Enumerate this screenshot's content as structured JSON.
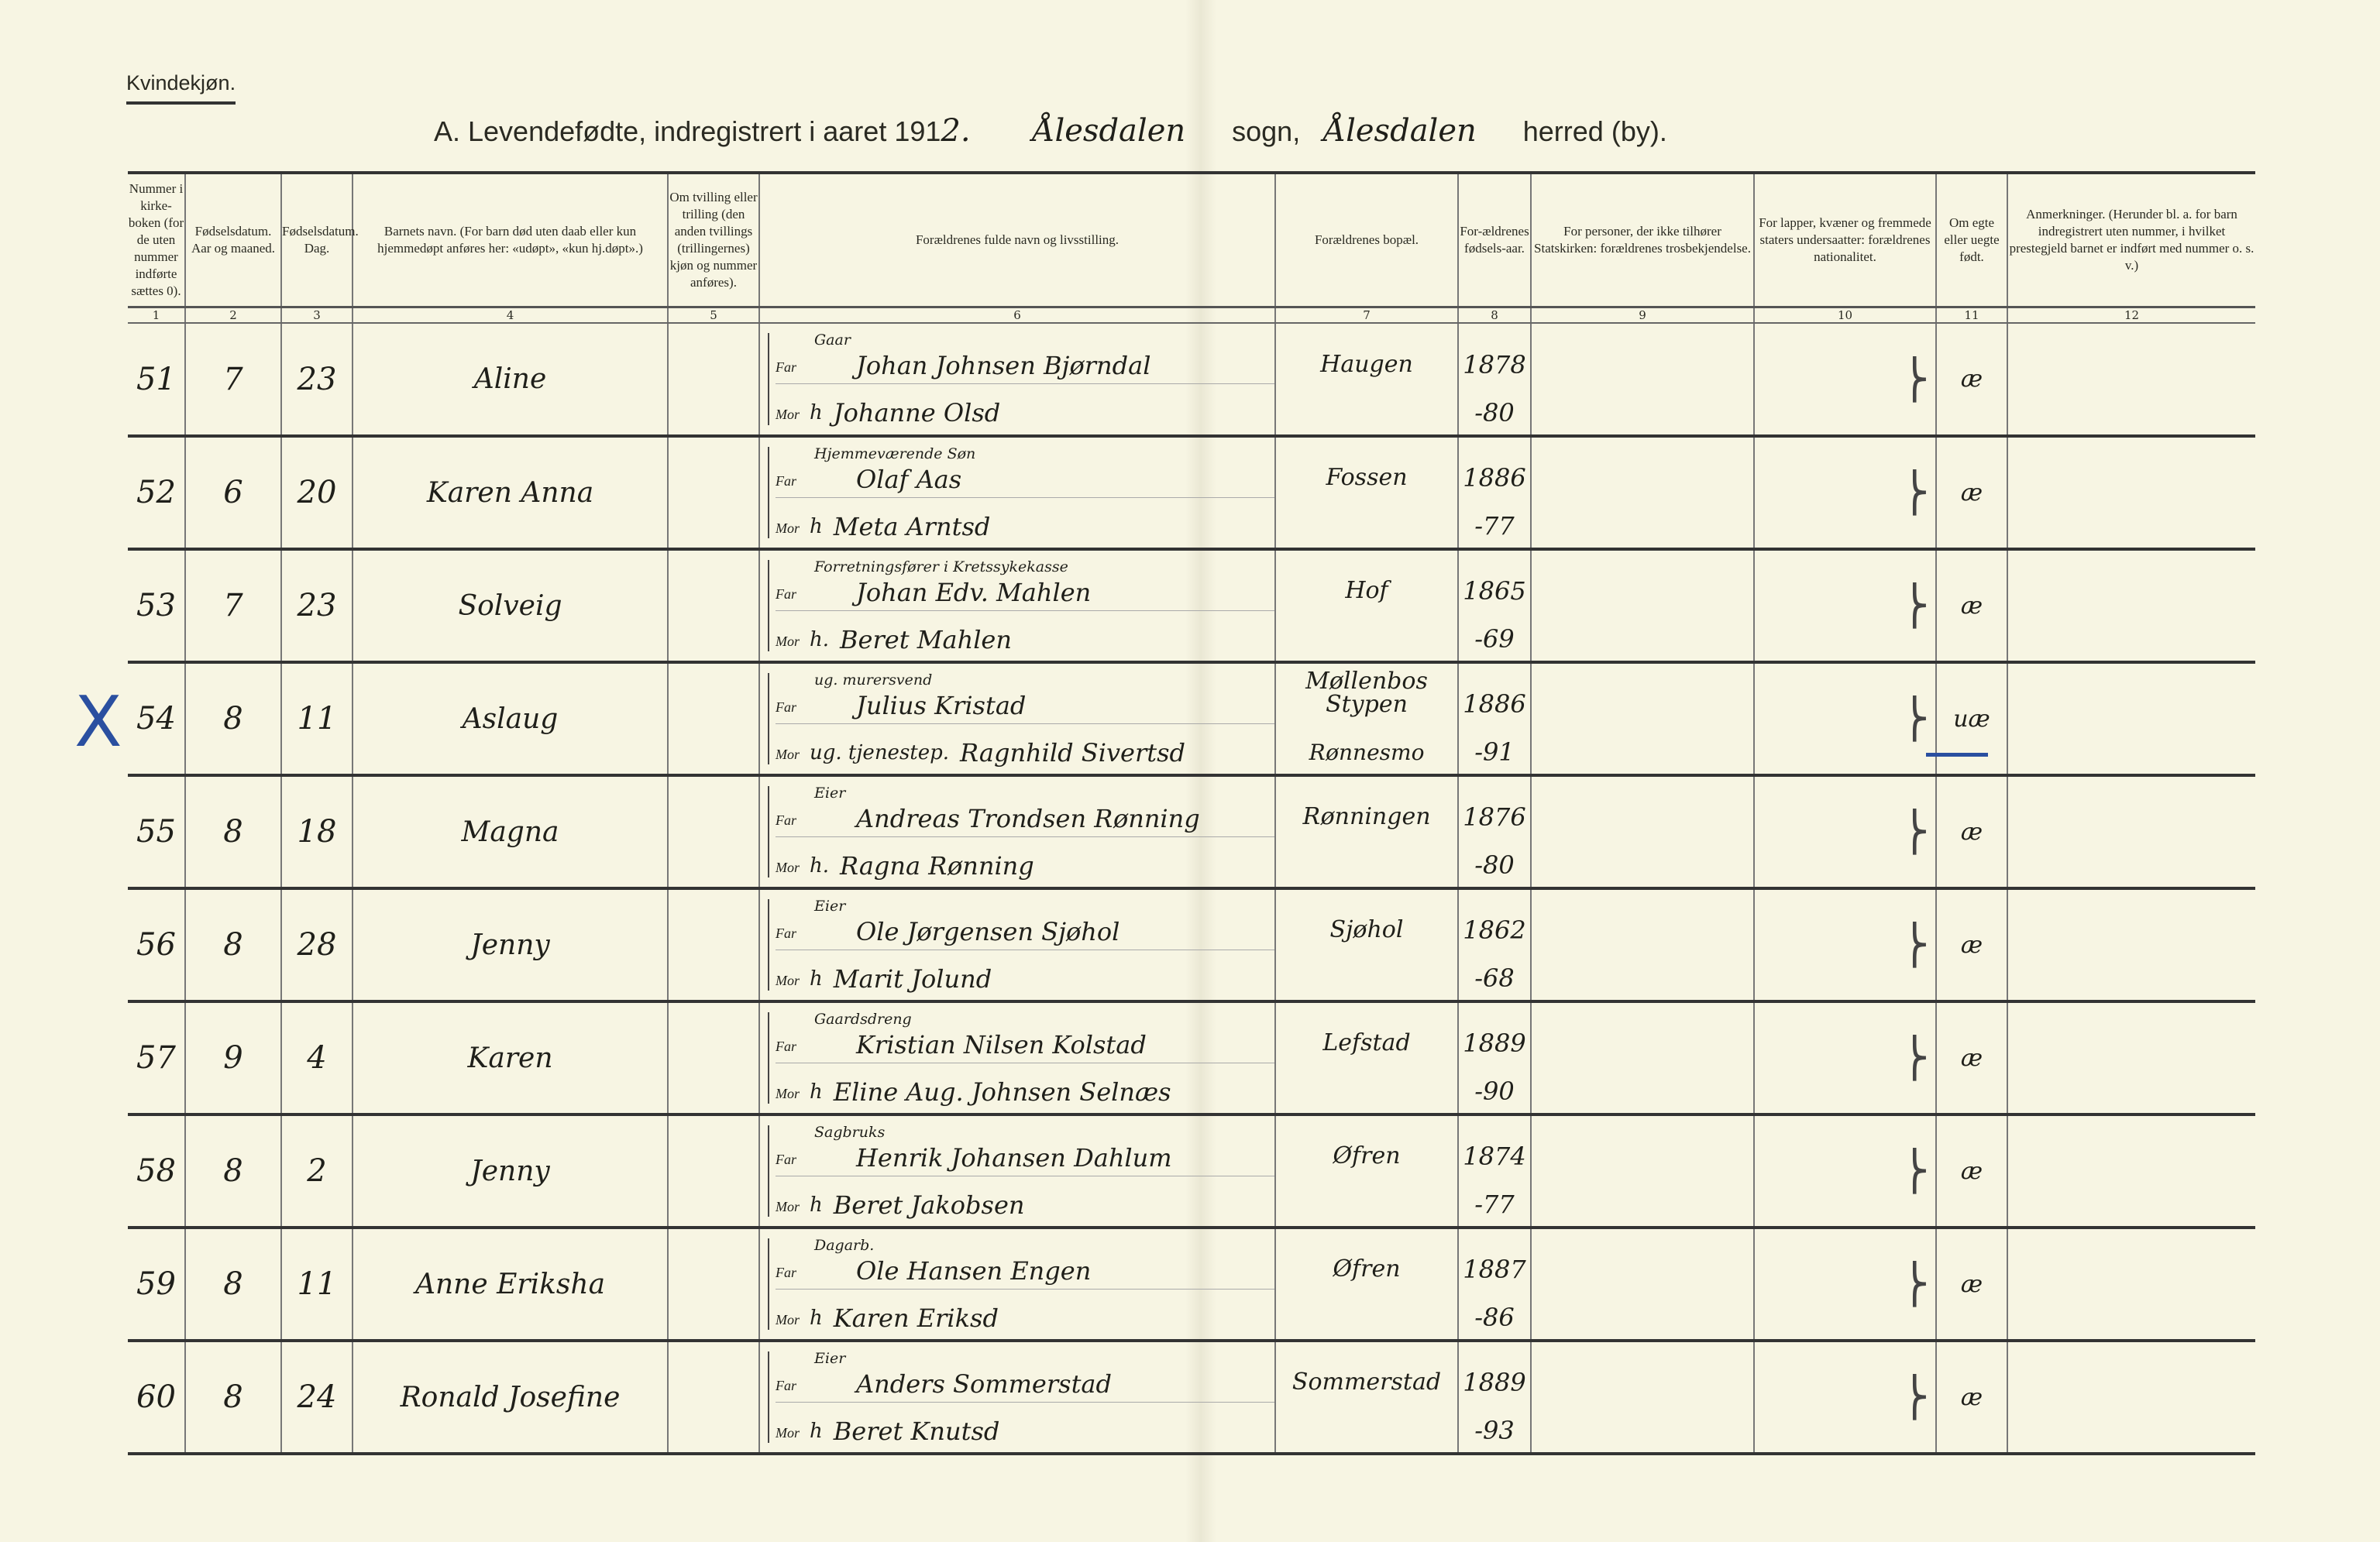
{
  "header": {
    "gender": "Kvindekjøn.",
    "title_prefix": "A.  Levendefødte, indregistrert i aaret 191",
    "year_digit": "2.",
    "parish": "Ålesdalen",
    "sogn_label": "sogn,",
    "herred": "Ålesdalen",
    "herred_label": "herred (by)."
  },
  "columns": [
    "Nummer i kirke-boken (for de uten nummer indførte sættes 0).",
    "Fødselsdatum. Aar og maaned.",
    "Fødselsdatum. Dag.",
    "Barnets navn. (For barn død uten daab eller kun hjemmedøpt anføres her: «udøpt», «kun hj.døpt».)",
    "Om tvilling eller trilling (den anden tvillings (trillingernes) kjøn og nummer anføres).",
    "Forældrenes fulde navn og livsstilling.",
    "Forældrenes bopæl.",
    "For-ældrenes fødsels-aar.",
    "For personer, der ikke tilhører Statskirken: forældrenes trosbekjendelse.",
    "For lapper, kvæner og fremmede staters undersaatter: forældrenes nationalitet.",
    "Om egte eller uegte født.",
    "Anmerkninger. (Herunder bl. a. for barn indregistrert uten nummer, i hvilket prestegjeld barnet er indført med nummer o. s. v.)"
  ],
  "column_numbers": [
    "1",
    "2",
    "3",
    "4",
    "5",
    "6",
    "7",
    "8",
    "9",
    "10",
    "11",
    "12"
  ],
  "labels": {
    "far": "Far",
    "mor": "Mor"
  },
  "rows": [
    {
      "nr": "51",
      "month": "7",
      "day": "23",
      "name": "Aline",
      "far_occ": "Gaar",
      "far": "Johan Johnsen Bjørndal",
      "mor_occ": "h",
      "mor": "Johanne Olsd",
      "bopel": "Haugen",
      "far_year": "1878",
      "mor_year": "-80",
      "egte": "æ"
    },
    {
      "nr": "52",
      "month": "6",
      "day": "20",
      "name": "Karen Anna",
      "far_occ": "Hjemmeværende Søn",
      "far": "Olaf Aas",
      "mor_occ": "h",
      "mor": "Meta Arntsd",
      "bopel": "Fossen",
      "far_year": "1886",
      "mor_year": "-77",
      "egte": "æ"
    },
    {
      "nr": "53",
      "month": "7",
      "day": "23",
      "name": "Solveig",
      "far_occ": "Forretningsfører i Kretssykekasse",
      "far": "Johan Edv. Mahlen",
      "mor_occ": "h.",
      "mor": "Beret Mahlen",
      "bopel": "Hof",
      "far_year": "1865",
      "mor_year": "-69",
      "egte": "æ"
    },
    {
      "nr": "54",
      "month": "8",
      "day": "11",
      "name": "Aslaug",
      "far_occ": "ug. murersvend",
      "far": "Julius Kristad",
      "mor_occ": "ug. tjenestep.",
      "mor": "Ragnhild Sivertsd",
      "bopel": "Møllenbos Stypen",
      "bopel2": "Rønnesmo",
      "far_year": "1886",
      "mor_year": "-91",
      "egte": "uæ"
    },
    {
      "nr": "55",
      "month": "8",
      "day": "18",
      "name": "Magna",
      "far_occ": "Eier",
      "far": "Andreas Trondsen Rønning",
      "mor_occ": "h.",
      "mor": "Ragna Rønning",
      "bopel": "Rønningen",
      "far_year": "1876",
      "mor_year": "-80",
      "egte": "æ"
    },
    {
      "nr": "56",
      "month": "8",
      "day": "28",
      "name": "Jenny",
      "far_occ": "Eier",
      "far": "Ole Jørgensen Sjøhol",
      "mor_occ": "h",
      "mor": "Marit Jolund",
      "bopel": "Sjøhol",
      "far_year": "1862",
      "mor_year": "-68",
      "egte": "æ"
    },
    {
      "nr": "57",
      "month": "9",
      "day": "4",
      "name": "Karen",
      "far_occ": "Gaardsdreng",
      "far": "Kristian Nilsen Kolstad",
      "mor_occ": "h",
      "mor": "Eline Aug. Johnsen Selnæs",
      "bopel": "Lefstad",
      "far_year": "1889",
      "mor_year": "-90",
      "egte": "æ"
    },
    {
      "nr": "58",
      "month": "8",
      "day": "2",
      "name": "Jenny",
      "far_occ": "Sagbruks",
      "far": "Henrik Johansen Dahlum",
      "mor_occ": "h",
      "mor": "Beret Jakobsen",
      "bopel": "Øfren",
      "far_year": "1874",
      "mor_year": "-77",
      "egte": "æ"
    },
    {
      "nr": "59",
      "month": "8",
      "day": "11",
      "name": "Anne Eriksha",
      "far_occ": "Dagarb.",
      "far": "Ole Hansen Engen",
      "mor_occ": "h",
      "mor": "Karen Eriksd",
      "bopel": "Øfren",
      "far_year": "1887",
      "mor_year": "-86",
      "egte": "æ"
    },
    {
      "nr": "60",
      "month": "8",
      "day": "24",
      "name": "Ronald Josefine",
      "far_occ": "Eier",
      "far": "Anders Sommerstad",
      "mor_occ": "h",
      "mor": "Beret Knutsd",
      "bopel": "Sommerstad",
      "far_year": "1889",
      "mor_year": "-93",
      "egte": "æ"
    }
  ],
  "annotations": {
    "margin_mark": "X",
    "ink_color": "#2a4fa0"
  }
}
